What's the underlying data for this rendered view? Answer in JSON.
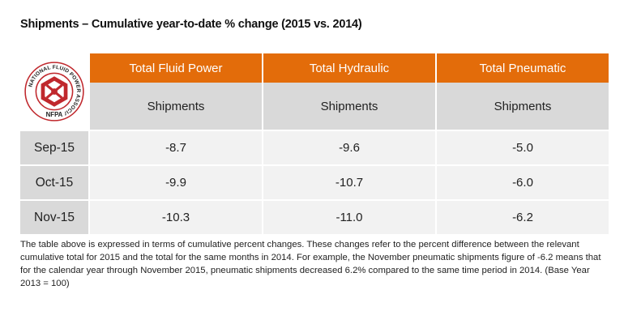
{
  "title": "Shipments – Cumulative year-to-date % change (2015 vs. 2014)",
  "logo": {
    "ring_text": "NATIONAL FLUID POWER ASSOCIATION",
    "abbr": "NFPA",
    "accent_color": "#c0282d"
  },
  "colors": {
    "header_bg": "#e36c0a",
    "subheader_bg": "#d9d9d9",
    "cell_bg": "#f2f2f2"
  },
  "chart_data": {
    "type": "table",
    "columns": [
      "Total Fluid Power",
      "Total Hydraulic",
      "Total Pneumatic"
    ],
    "subheaders": [
      "Shipments",
      "Shipments",
      "Shipments"
    ],
    "rows": [
      {
        "label": "Sep-15",
        "values": [
          "-8.7",
          "-9.6",
          "-5.0"
        ]
      },
      {
        "label": "Oct-15",
        "values": [
          "-9.9",
          "-10.7",
          "-6.0"
        ]
      },
      {
        "label": "Nov-15",
        "values": [
          "-10.3",
          "-11.0",
          "-6.2"
        ]
      }
    ]
  },
  "footnote": "The table above is expressed in terms of cumulative percent changes.  These changes refer to the percent difference between the relevant cumulative total for 2015 and the total for the same months in 2014.  For example, the November pneumatic shipments figure of -6.2 means that for the calendar year through November 2015, pneumatic shipments decreased 6.2% compared to the same time period in 2014.  (Base Year 2013 = 100)"
}
